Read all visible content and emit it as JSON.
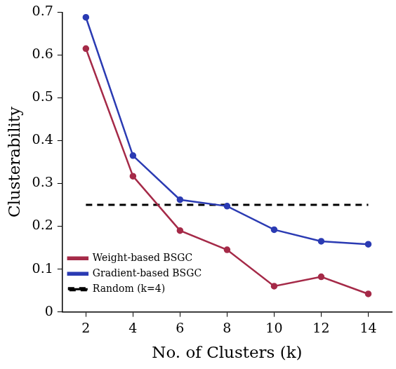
{
  "chart_data": {
    "type": "line",
    "x_label": "No. of Clusters (k)",
    "y_label": "Clusterability",
    "x": [
      2,
      4,
      6,
      8,
      10,
      12,
      14
    ],
    "series": [
      {
        "name": "Weight-based BSGC",
        "color": "#a52a48",
        "marker": "circle",
        "line_style": "solid",
        "values": [
          0.615,
          0.317,
          0.19,
          0.145,
          0.06,
          0.082,
          0.042
        ]
      },
      {
        "name": "Gradient-based BSGC",
        "color": "#2b3bb3",
        "marker": "circle",
        "line_style": "solid",
        "values": [
          0.688,
          0.365,
          0.262,
          0.247,
          0.192,
          0.165,
          0.158
        ]
      },
      {
        "name": "Random (k=4)",
        "color": "#000000",
        "marker": "none",
        "line_style": "dashed",
        "values": [
          0.25,
          0.25,
          0.25,
          0.25,
          0.25,
          0.25,
          0.25
        ]
      }
    ],
    "xlim": [
      1,
      15
    ],
    "xticks": [
      2,
      4,
      6,
      8,
      10,
      12,
      14
    ],
    "ylim": [
      0,
      0.7
    ],
    "yticks": [
      0,
      0.1,
      0.2,
      0.3,
      0.4,
      0.5,
      0.6,
      0.7
    ],
    "grid": false,
    "legend": "upper right"
  }
}
